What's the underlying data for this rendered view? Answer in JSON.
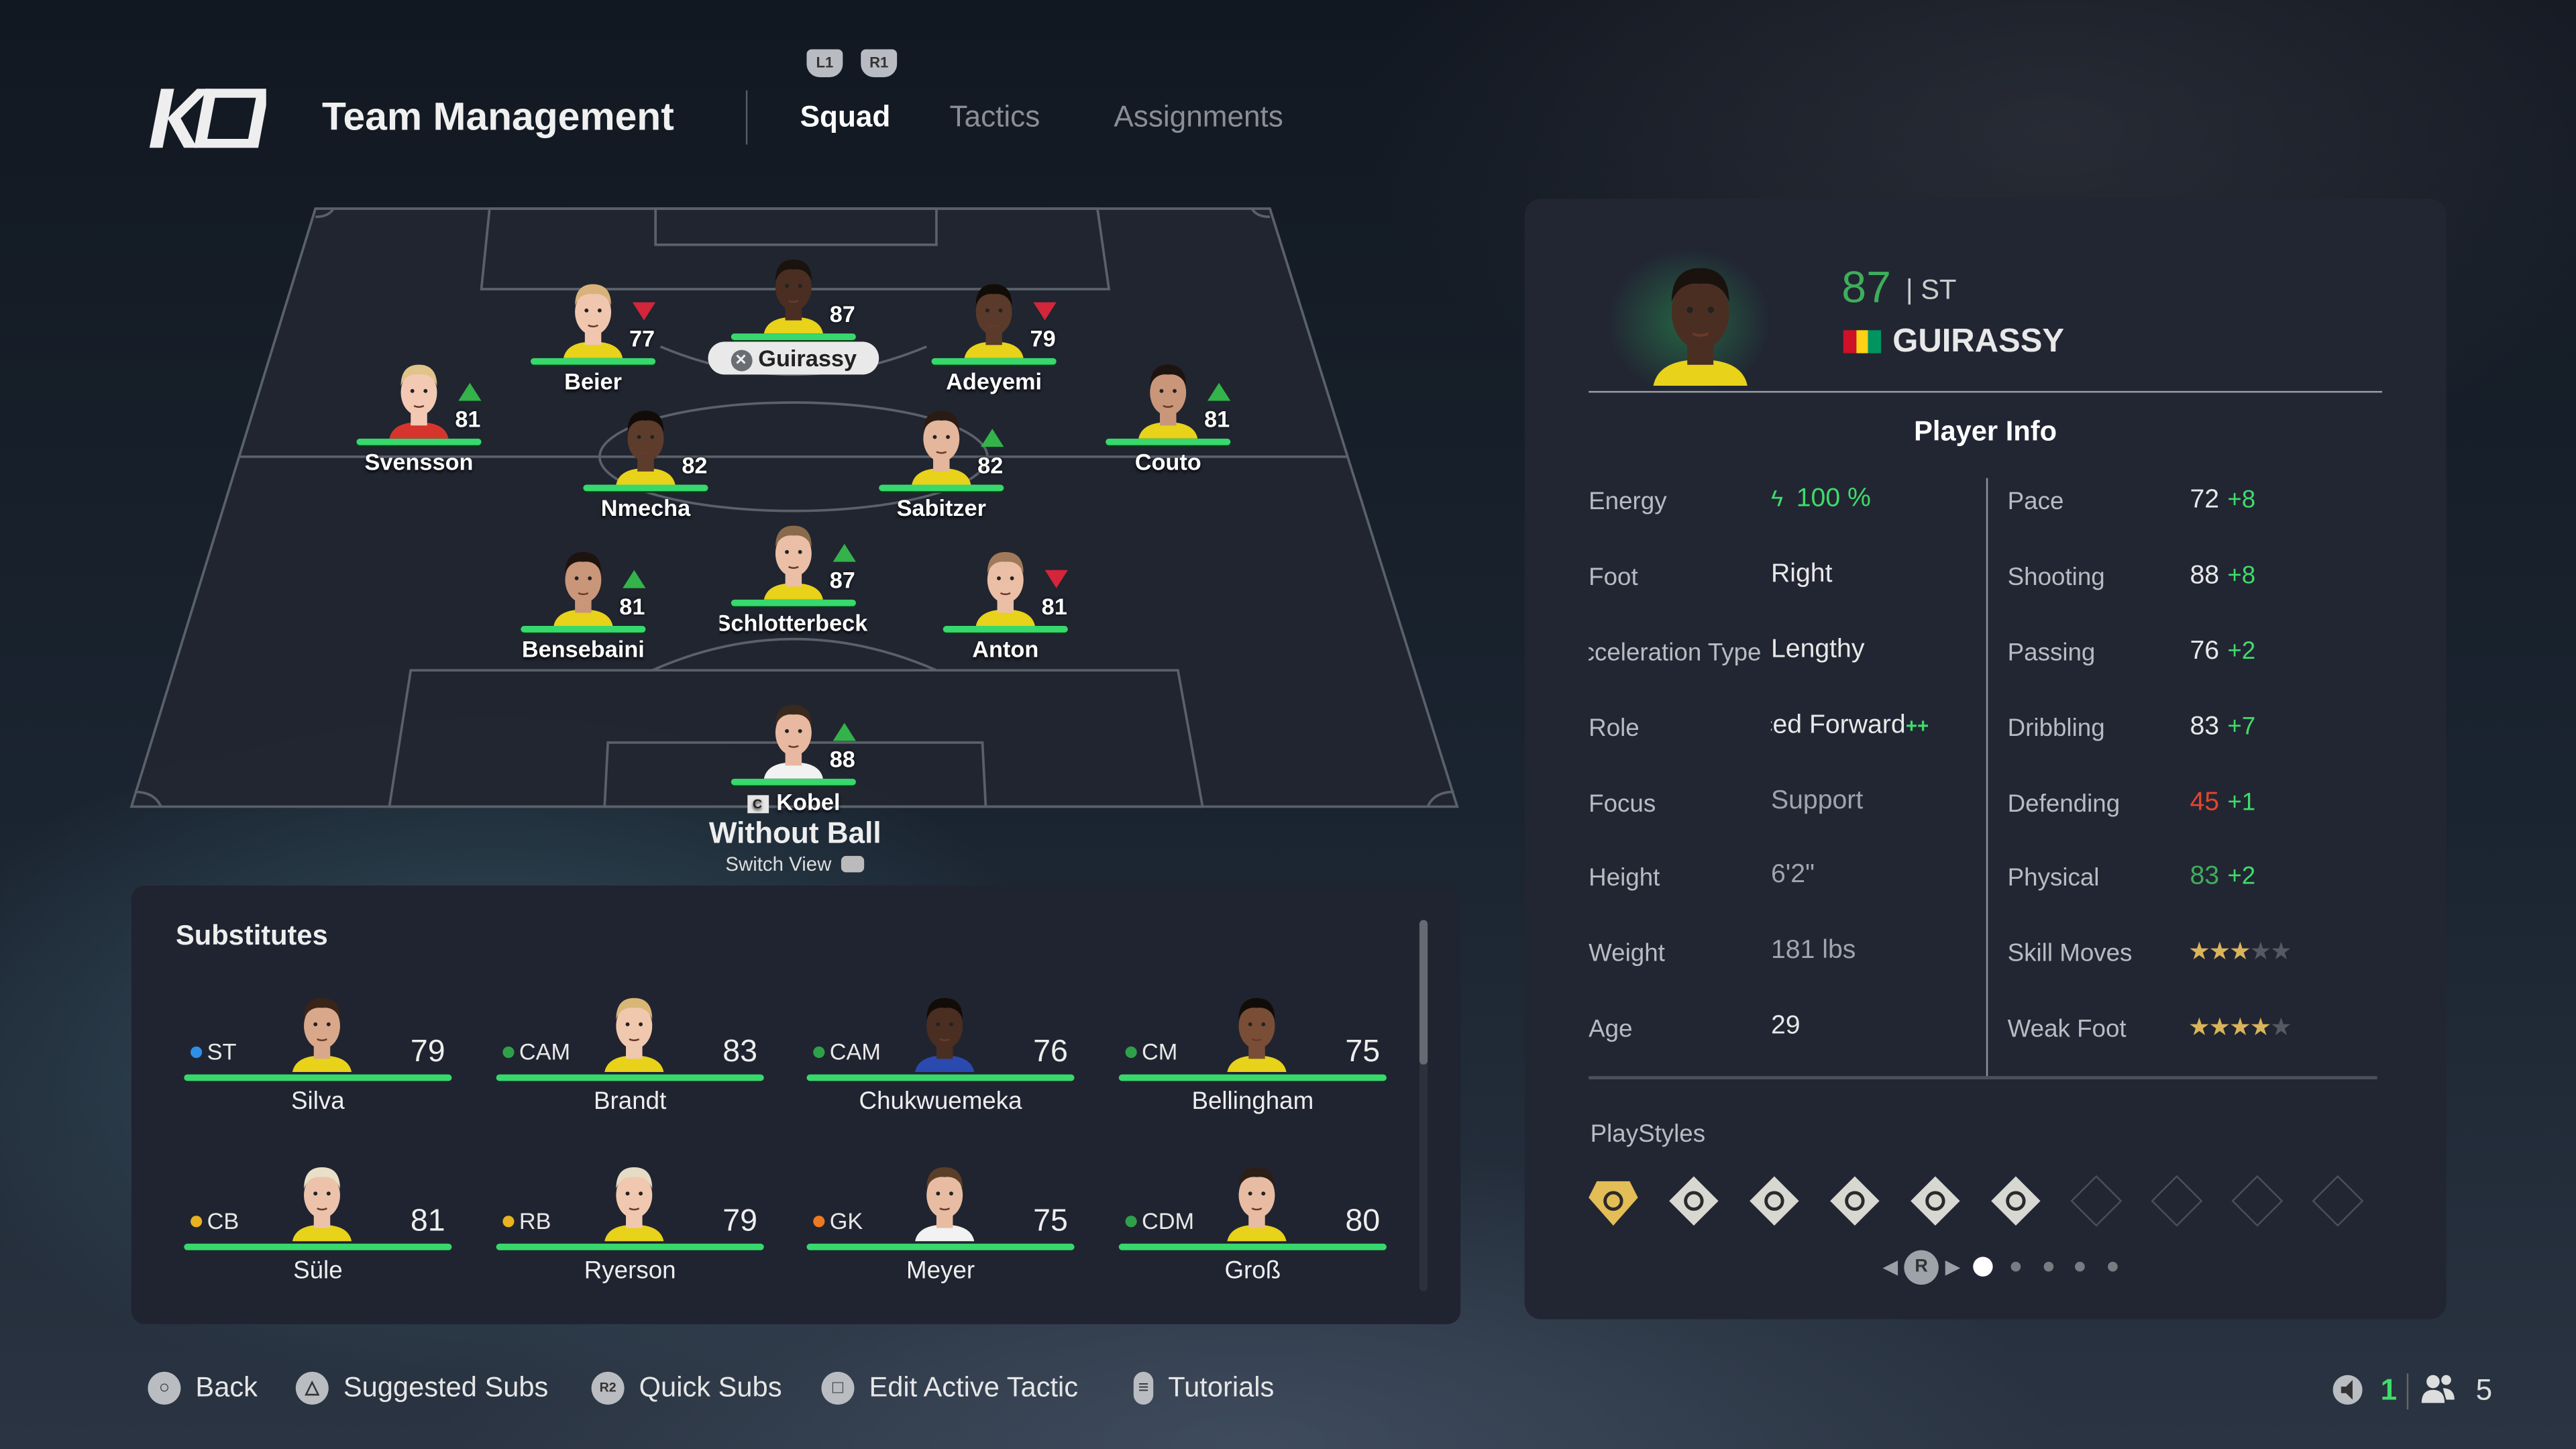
{
  "header": {
    "logo_text": "KO",
    "title": "Team Management",
    "bumpers": [
      "L1",
      "R1"
    ],
    "tabs": [
      {
        "label": "Squad",
        "active": true
      },
      {
        "label": "Tactics",
        "active": false
      },
      {
        "label": "Assignments",
        "active": false
      }
    ]
  },
  "pitch": {
    "players": [
      {
        "name": "Guirassy",
        "rating": "87",
        "trend": "none",
        "selected": true,
        "selected_icon": "cross-button-icon"
      },
      {
        "name": "Beier",
        "rating": "77",
        "trend": "down"
      },
      {
        "name": "Adeyemi",
        "rating": "79",
        "trend": "down"
      },
      {
        "name": "Svensson",
        "rating": "81",
        "trend": "up"
      },
      {
        "name": "Couto",
        "rating": "81",
        "trend": "up"
      },
      {
        "name": "Nmecha",
        "rating": "82",
        "trend": "none"
      },
      {
        "name": "Sabitzer",
        "rating": "82",
        "trend": "up"
      },
      {
        "name": "Bensebaini",
        "rating": "81",
        "trend": "up"
      },
      {
        "name": "Schlotterbeck",
        "rating": "87",
        "trend": "up"
      },
      {
        "name": "Anton",
        "rating": "81",
        "trend": "down"
      },
      {
        "name": "Kobel",
        "rating": "88",
        "trend": "up",
        "captain": true,
        "captain_badge": "C"
      }
    ],
    "energy_percent": 100,
    "view_label": "Without Ball",
    "switch_view_label": "Switch View",
    "switch_view_button": "L3"
  },
  "substitutes": {
    "title": "Substitutes",
    "players": [
      {
        "position": "ST",
        "pos_color": "#2f8fe8",
        "rating": "79",
        "name": "Silva"
      },
      {
        "position": "CAM",
        "pos_color": "#2fa04a",
        "rating": "83",
        "name": "Brandt"
      },
      {
        "position": "CAM",
        "pos_color": "#2fa04a",
        "rating": "76",
        "name": "Chukwuemeka"
      },
      {
        "position": "CM",
        "pos_color": "#2fa04a",
        "rating": "75",
        "name": "Bellingham"
      },
      {
        "position": "CB",
        "pos_color": "#e8b321",
        "rating": "81",
        "name": "Süle"
      },
      {
        "position": "RB",
        "pos_color": "#e8b321",
        "rating": "79",
        "name": "Ryerson"
      },
      {
        "position": "GK",
        "pos_color": "#ee7a1f",
        "rating": "75",
        "name": "Meyer"
      },
      {
        "position": "CDM",
        "pos_color": "#2fa04a",
        "rating": "80",
        "name": "Groß"
      }
    ]
  },
  "player_panel": {
    "rating": "87",
    "position": "ST",
    "name": "GUIRASSY",
    "flag_colors": [
      "#ce1126",
      "#fcd116",
      "#009460"
    ],
    "section_title": "Player Info",
    "info": [
      {
        "label": "Energy",
        "value": "100 %",
        "icon": "lightning-icon"
      },
      {
        "label": "Foot",
        "value": "Right"
      },
      {
        "label": "Acceleration Type",
        "value": "Lengthy"
      },
      {
        "label": "Role",
        "value": "Advanced Forward",
        "suffix": "++"
      },
      {
        "label": "Focus",
        "value": "Support"
      },
      {
        "label": "Height",
        "value": "6'2\""
      },
      {
        "label": "Weight",
        "value": "181 lbs"
      },
      {
        "label": "Age",
        "value": "29"
      }
    ],
    "attributes": [
      {
        "label": "Pace",
        "value": "72",
        "bonus": "+8",
        "value_color": "#e8e8e8"
      },
      {
        "label": "Shooting",
        "value": "88",
        "bonus": "+8",
        "value_color": "#e8e8e8"
      },
      {
        "label": "Passing",
        "value": "76",
        "bonus": "+2",
        "value_color": "#e8e8e8"
      },
      {
        "label": "Dribbling",
        "value": "83",
        "bonus": "+7",
        "value_color": "#e8e8e8"
      },
      {
        "label": "Defending",
        "value": "45",
        "bonus": "+1",
        "value_color": "#e5442f"
      },
      {
        "label": "Physical",
        "value": "83",
        "bonus": "+2",
        "value_color": "#3fae5a"
      }
    ],
    "skill_moves": {
      "label": "Skill Moves",
      "stars": 3,
      "max": 5
    },
    "weak_foot": {
      "label": "Weak Foot",
      "stars": 4,
      "max": 5
    },
    "playstyles": {
      "label": "PlayStyles",
      "icons": [
        "power-header-plus-icon",
        "first-touch-icon",
        "acrobatic-icon",
        "power-shot-icon",
        "finesse-shot-icon",
        "press-proven-icon",
        "empty-slot",
        "empty-slot",
        "empty-slot",
        "empty-slot"
      ],
      "pager_button": "R",
      "pages": 5,
      "current_page": 1
    }
  },
  "footer": {
    "actions": [
      {
        "label": "Back",
        "icon": "circle-button-icon"
      },
      {
        "label": "Suggested Subs",
        "icon": "triangle-button-icon"
      },
      {
        "label": "Quick Subs",
        "icon": "r2-button-icon"
      },
      {
        "label": "Edit Active Tactic",
        "icon": "square-button-icon"
      },
      {
        "label": "Tutorials",
        "icon": "options-button-icon"
      }
    ],
    "status": {
      "left_count": "1",
      "players_count": "5"
    }
  },
  "colors": {
    "accent_green": "#37d86c",
    "panel_bg": "#222633",
    "trend_up": "#33b34a",
    "trend_down": "#d3263a"
  }
}
